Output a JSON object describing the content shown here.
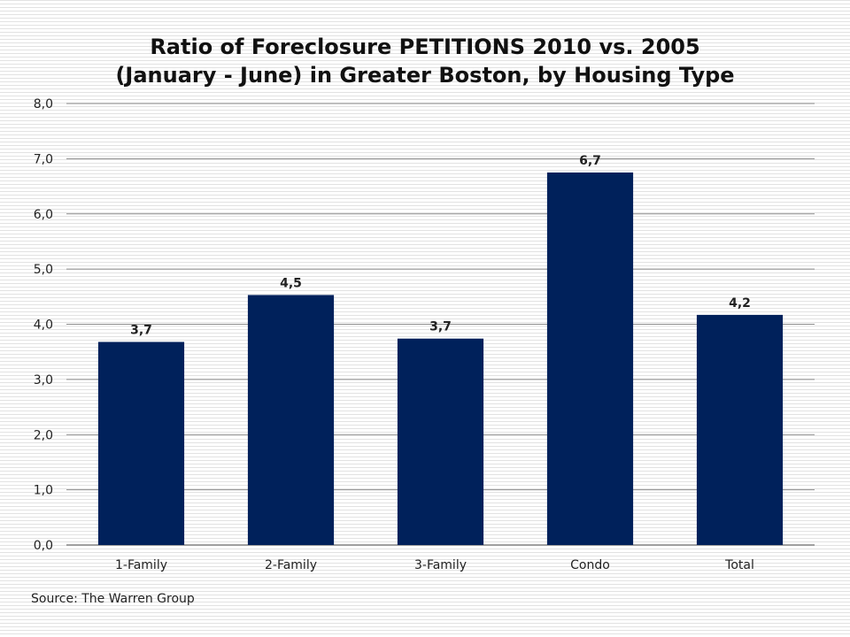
{
  "chart_data": {
    "type": "bar",
    "title_lines": [
      "Ratio of Foreclosure PETITIONS 2010 vs. 2005",
      "(January - June) in Greater Boston, by Housing Type"
    ],
    "categories": [
      "1-Family",
      "2-Family",
      "3-Family",
      "Condo",
      "Total"
    ],
    "values": [
      3.68,
      4.53,
      3.74,
      6.75,
      4.17
    ],
    "data_labels": [
      "3,7",
      "4,5",
      "3,7",
      "6,7",
      "4,2"
    ],
    "ylim": [
      0,
      8
    ],
    "y_ticks": [
      0,
      1,
      2,
      3,
      4,
      5,
      6,
      7,
      8
    ],
    "y_tick_labels": [
      "0,0",
      "1,0",
      "2,0",
      "3,0",
      "4,0",
      "5,0",
      "6,0",
      "7,0",
      "8,0"
    ],
    "xlabel": "",
    "ylabel": "",
    "grid": true,
    "legend": "none",
    "bar_color": "#00215b",
    "source": "Source: The Warren Group"
  }
}
